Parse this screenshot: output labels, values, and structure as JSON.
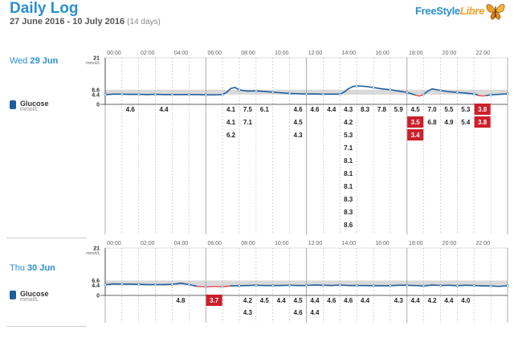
{
  "header": {
    "title": "Daily Log",
    "range": "27 June 2016 - 10 July 2016",
    "days": "(14 days)",
    "brand_main": "FreeStyle",
    "brand_sub": "Libre"
  },
  "colors": {
    "accent": "#2a8fd0",
    "line": "#1d5f9e",
    "low": "#cc1f2a",
    "target_band": "#d9d9d9"
  },
  "glucose_label": "Glucose",
  "glucose_unit": "mmol/L",
  "chart_data": [
    {
      "type": "line",
      "day_label": "Wed",
      "day_date": "29 Jun",
      "x_ticks": [
        "00:00",
        "02:00",
        "04:00",
        "06:00",
        "08:00",
        "10:00",
        "12:00",
        "14:00",
        "16:00",
        "18:00",
        "20:00",
        "22:00"
      ],
      "y_ticks": [
        "21",
        "6.6",
        "4.4",
        "0"
      ],
      "y_unit": "mmol/L",
      "ylim": [
        0,
        21
      ],
      "target_range": [
        4.4,
        6.6
      ],
      "x": [
        0,
        0.5,
        1,
        1.5,
        2,
        2.5,
        3,
        3.5,
        4,
        4.5,
        5,
        5.5,
        6,
        6.5,
        7,
        7.25,
        7.5,
        7.75,
        8,
        8.5,
        9,
        9.5,
        10,
        10.5,
        11,
        11.5,
        12,
        12.5,
        13,
        13.5,
        14,
        14.25,
        14.5,
        14.75,
        15,
        15.5,
        16,
        16.5,
        17,
        17.5,
        18,
        18.25,
        18.5,
        18.75,
        19,
        19.25,
        19.5,
        19.75,
        20,
        20.5,
        21,
        21.5,
        22,
        22.25,
        22.5,
        22.75,
        23,
        23.5,
        24
      ],
      "y": [
        4.4,
        4.6,
        4.6,
        4.5,
        4.5,
        4.4,
        4.5,
        4.4,
        4.4,
        4.4,
        4.4,
        4.4,
        4.3,
        4.3,
        4.4,
        5.5,
        7.2,
        7.6,
        6.5,
        6.0,
        6.1,
        5.8,
        5.5,
        5.2,
        4.9,
        4.8,
        4.7,
        4.7,
        4.6,
        4.6,
        4.6,
        5.5,
        7.0,
        8.0,
        8.3,
        8.1,
        7.6,
        7.0,
        6.6,
        6.0,
        5.4,
        4.8,
        4.2,
        3.8,
        4.5,
        6.0,
        7.0,
        6.6,
        6.3,
        5.7,
        5.4,
        5.1,
        4.7,
        4.1,
        3.8,
        4.0,
        4.3,
        4.5,
        4.8
      ],
      "value_columns": [
        {
          "hour": 1,
          "values": [
            "4.6"
          ]
        },
        {
          "hour": 3,
          "values": [
            "4.4"
          ]
        },
        {
          "hour": 7,
          "values": [
            "4.1",
            "4.1",
            "6.2"
          ]
        },
        {
          "hour": 8,
          "values": [
            "7.5",
            "7.1"
          ]
        },
        {
          "hour": 9,
          "values": [
            "6.1"
          ]
        },
        {
          "hour": 11,
          "values": [
            "4.6",
            "4.5",
            "4.3"
          ]
        },
        {
          "hour": 12,
          "values": [
            "4.6"
          ]
        },
        {
          "hour": 13,
          "values": [
            "4.4"
          ]
        },
        {
          "hour": 14,
          "values": [
            "4.3",
            "4.2",
            "5.3",
            "7.1",
            "8.1",
            "8.1",
            "8.1",
            "8.3",
            "8.3",
            "8.6"
          ]
        },
        {
          "hour": 15,
          "values": [
            "8.3"
          ]
        },
        {
          "hour": 16,
          "values": [
            "7.8"
          ]
        },
        {
          "hour": 17,
          "values": [
            "5.9"
          ]
        },
        {
          "hour": 18,
          "values": [
            "4.5",
            "3.5",
            "3.4"
          ],
          "low": [
            false,
            true,
            true
          ]
        },
        {
          "hour": 19,
          "values": [
            "7.0",
            "6.8"
          ]
        },
        {
          "hour": 20,
          "values": [
            "5.5",
            "4.9"
          ]
        },
        {
          "hour": 21,
          "values": [
            "5.3",
            "5.4"
          ]
        },
        {
          "hour": 22,
          "values": [
            "3.8",
            "3.8"
          ],
          "low": [
            true,
            true
          ]
        }
      ]
    },
    {
      "type": "line",
      "day_label": "Thu",
      "day_date": "30 Jun",
      "x_ticks": [
        "00:00",
        "02:00",
        "04:00",
        "06:00",
        "08:00",
        "10:00",
        "12:00",
        "14:00",
        "16:00",
        "18:00",
        "20:00",
        "22:00"
      ],
      "y_ticks": [
        "21",
        "6.6",
        "4.4",
        "0"
      ],
      "y_unit": "mmol/L",
      "ylim": [
        0,
        21
      ],
      "target_range": [
        4.4,
        6.6
      ],
      "x": [
        0,
        0.5,
        1,
        1.5,
        2,
        2.5,
        3,
        3.5,
        4,
        4.5,
        5,
        5.5,
        6,
        6.5,
        7,
        7.5,
        8,
        8.5,
        9,
        9.5,
        10,
        10.5,
        11,
        11.5,
        12,
        12.5,
        13,
        13.5,
        14,
        14.5,
        15,
        15.5,
        16,
        16.5,
        17,
        17.5,
        18,
        18.5,
        19,
        19.5,
        20,
        20.5,
        21,
        21.5,
        22,
        22.5,
        23,
        23.5,
        24
      ],
      "y": [
        4.7,
        5.1,
        5.0,
        5.0,
        4.9,
        4.8,
        4.8,
        4.8,
        4.9,
        5.4,
        4.8,
        4.0,
        3.8,
        4.0,
        3.9,
        4.2,
        4.3,
        4.4,
        4.5,
        4.4,
        4.4,
        4.4,
        4.5,
        4.4,
        4.4,
        4.6,
        4.5,
        4.4,
        4.6,
        4.4,
        4.4,
        4.4,
        4.3,
        4.3,
        4.3,
        4.5,
        4.5,
        4.4,
        4.2,
        4.6,
        4.4,
        4.5,
        4.3,
        4.5,
        4.4,
        4.2,
        4.2,
        4.0,
        4.3
      ],
      "value_columns": [
        {
          "hour": 4,
          "values": [
            "4.8"
          ]
        },
        {
          "hour": 6,
          "values": [
            "3.7"
          ],
          "low": [
            true
          ]
        },
        {
          "hour": 8,
          "values": [
            "4.2",
            "4.3"
          ]
        },
        {
          "hour": 9,
          "values": [
            "4.5"
          ]
        },
        {
          "hour": 10,
          "values": [
            "4.4"
          ]
        },
        {
          "hour": 11,
          "values": [
            "4.5",
            "4.6"
          ]
        },
        {
          "hour": 12,
          "values": [
            "4.4",
            "4.4"
          ]
        },
        {
          "hour": 13,
          "values": [
            "4.6"
          ]
        },
        {
          "hour": 14,
          "values": [
            "4.6"
          ]
        },
        {
          "hour": 15,
          "values": [
            "4.4"
          ]
        },
        {
          "hour": 17,
          "values": [
            "4.3"
          ]
        },
        {
          "hour": 18,
          "values": [
            "4.4"
          ]
        },
        {
          "hour": 19,
          "values": [
            "4.2"
          ]
        },
        {
          "hour": 20,
          "values": [
            "4.4"
          ]
        },
        {
          "hour": 21,
          "values": [
            "4.0"
          ]
        }
      ]
    }
  ]
}
